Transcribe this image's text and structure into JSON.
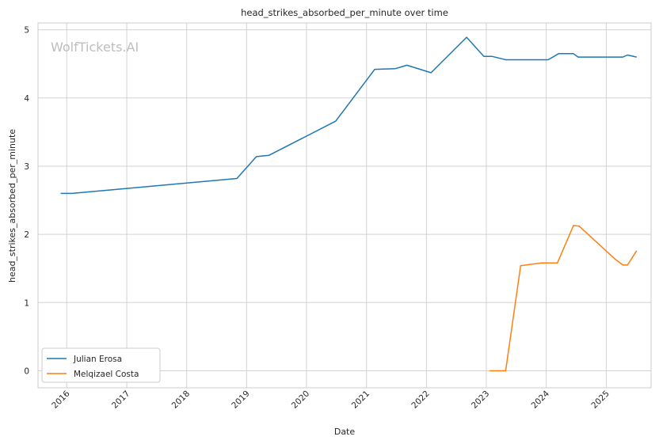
{
  "watermark": "WolfTickets.AI",
  "chart_data": {
    "type": "line",
    "title": "head_strikes_absorbed_per_minute over time",
    "xlabel": "Date",
    "ylabel": "head_strikes_absorbed_per_minute",
    "x_ticks": [
      "2016",
      "2017",
      "2018",
      "2019",
      "2020",
      "2021",
      "2022",
      "2023",
      "2024",
      "2025"
    ],
    "y_ticks": [
      "0",
      "1",
      "2",
      "3",
      "4",
      "5"
    ],
    "xlim": [
      "2015-07-10",
      "2025-10-01"
    ],
    "ylim": [
      -0.25,
      5.1
    ],
    "grid": true,
    "legend_position": "lower-left",
    "series": [
      {
        "name": "Julian Erosa",
        "color": "#1f77b4",
        "points": [
          [
            "2015-11-25",
            2.6
          ],
          [
            "2016-02-01",
            2.6
          ],
          [
            "2018-11-03",
            2.82
          ],
          [
            "2019-03-02",
            3.14
          ],
          [
            "2019-05-18",
            3.16
          ],
          [
            "2020-06-27",
            3.66
          ],
          [
            "2021-02-20",
            4.42
          ],
          [
            "2021-06-26",
            4.43
          ],
          [
            "2021-09-04",
            4.48
          ],
          [
            "2022-01-29",
            4.37
          ],
          [
            "2022-09-03",
            4.89
          ],
          [
            "2022-12-17",
            4.61
          ],
          [
            "2023-02-04",
            4.61
          ],
          [
            "2023-04-29",
            4.56
          ],
          [
            "2023-11-25",
            4.56
          ],
          [
            "2024-01-13",
            4.56
          ],
          [
            "2024-03-16",
            4.65
          ],
          [
            "2024-06-15",
            4.65
          ],
          [
            "2024-07-13",
            4.6
          ],
          [
            "2025-02-08",
            4.6
          ],
          [
            "2025-03-08",
            4.6
          ],
          [
            "2025-04-12",
            4.6
          ],
          [
            "2025-05-10",
            4.63
          ],
          [
            "2025-07-05",
            4.6
          ]
        ]
      },
      {
        "name": "Melqizael Costa",
        "color": "#ff7f0e",
        "points": [
          [
            "2023-01-21",
            0.0
          ],
          [
            "2023-04-29",
            0.0
          ],
          [
            "2023-07-29",
            1.54
          ],
          [
            "2023-12-02",
            1.58
          ],
          [
            "2024-03-09",
            1.58
          ],
          [
            "2024-06-15",
            2.13
          ],
          [
            "2024-07-20",
            2.12
          ],
          [
            "2025-02-22",
            1.64
          ],
          [
            "2025-04-12",
            1.55
          ],
          [
            "2025-05-10",
            1.55
          ],
          [
            "2025-07-05",
            1.76
          ]
        ]
      }
    ]
  }
}
